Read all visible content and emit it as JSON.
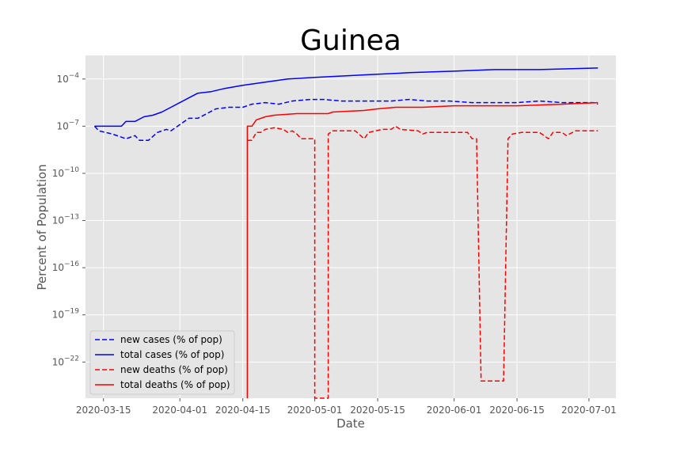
{
  "chart_data": {
    "type": "line",
    "title": "Guinea",
    "xlabel": "Date",
    "ylabel": "Percent of Population",
    "yscale": "log",
    "ylim_log10": [
      -24.3,
      -2.5
    ],
    "xlim": [
      "2020-03-11",
      "2020-07-07"
    ],
    "grid": true,
    "legend_position": "lower-left",
    "x_ticks": [
      "2020-03-15",
      "2020-04-01",
      "2020-04-15",
      "2020-05-01",
      "2020-05-15",
      "2020-06-01",
      "2020-06-15",
      "2020-07-01"
    ],
    "y_ticks": [
      {
        "exp": -4,
        "label": "10−4"
      },
      {
        "exp": -7,
        "label": "10−7"
      },
      {
        "exp": -10,
        "label": "10−10"
      },
      {
        "exp": -13,
        "label": "10−13"
      },
      {
        "exp": -16,
        "label": "10−16"
      },
      {
        "exp": -19,
        "label": "10−19"
      },
      {
        "exp": -22,
        "label": "10−22"
      }
    ],
    "series": [
      {
        "name": "new cases (% of pop)",
        "color": "#0000ff",
        "dash": "dashed",
        "log10_points": [
          [
            "2020-03-13",
            -7.0
          ],
          [
            "2020-03-14",
            -7.3
          ],
          [
            "2020-03-17",
            -7.5
          ],
          [
            "2020-03-20",
            -7.8
          ],
          [
            "2020-03-22",
            -7.6
          ],
          [
            "2020-03-23",
            -7.9
          ],
          [
            "2020-03-25",
            -7.9
          ],
          [
            "2020-03-27",
            -7.4
          ],
          [
            "2020-03-29",
            -7.2
          ],
          [
            "2020-03-30",
            -7.3
          ],
          [
            "2020-04-01",
            -6.9
          ],
          [
            "2020-04-03",
            -6.5
          ],
          [
            "2020-04-05",
            -6.5
          ],
          [
            "2020-04-07",
            -6.2
          ],
          [
            "2020-04-09",
            -5.9
          ],
          [
            "2020-04-12",
            -5.8
          ],
          [
            "2020-04-15",
            -5.8
          ],
          [
            "2020-04-17",
            -5.6
          ],
          [
            "2020-04-20",
            -5.5
          ],
          [
            "2020-04-23",
            -5.6
          ],
          [
            "2020-04-26",
            -5.4
          ],
          [
            "2020-04-30",
            -5.3
          ],
          [
            "2020-05-03",
            -5.3
          ],
          [
            "2020-05-07",
            -5.4
          ],
          [
            "2020-05-10",
            -5.4
          ],
          [
            "2020-05-14",
            -5.4
          ],
          [
            "2020-05-18",
            -5.4
          ],
          [
            "2020-05-22",
            -5.3
          ],
          [
            "2020-05-26",
            -5.4
          ],
          [
            "2020-05-31",
            -5.4
          ],
          [
            "2020-06-05",
            -5.5
          ],
          [
            "2020-06-10",
            -5.5
          ],
          [
            "2020-06-15",
            -5.5
          ],
          [
            "2020-06-20",
            -5.4
          ],
          [
            "2020-06-25",
            -5.5
          ],
          [
            "2020-07-02",
            -5.5
          ],
          [
            "2020-07-03",
            -5.6
          ]
        ]
      },
      {
        "name": "total cases (% of pop)",
        "color": "#0000ff",
        "dash": "solid",
        "log10_points": [
          [
            "2020-03-13",
            -7.0
          ],
          [
            "2020-03-17",
            -7.0
          ],
          [
            "2020-03-19",
            -7.0
          ],
          [
            "2020-03-20",
            -6.7
          ],
          [
            "2020-03-22",
            -6.7
          ],
          [
            "2020-03-24",
            -6.4
          ],
          [
            "2020-03-26",
            -6.3
          ],
          [
            "2020-03-28",
            -6.1
          ],
          [
            "2020-03-30",
            -5.8
          ],
          [
            "2020-04-01",
            -5.5
          ],
          [
            "2020-04-03",
            -5.2
          ],
          [
            "2020-04-05",
            -4.9
          ],
          [
            "2020-04-08",
            -4.8
          ],
          [
            "2020-04-11",
            -4.6
          ],
          [
            "2020-04-15",
            -4.4
          ],
          [
            "2020-04-20",
            -4.2
          ],
          [
            "2020-04-25",
            -4.0
          ],
          [
            "2020-05-01",
            -3.9
          ],
          [
            "2020-05-08",
            -3.8
          ],
          [
            "2020-05-15",
            -3.7
          ],
          [
            "2020-05-22",
            -3.6
          ],
          [
            "2020-06-01",
            -3.5
          ],
          [
            "2020-06-10",
            -3.4
          ],
          [
            "2020-06-20",
            -3.4
          ],
          [
            "2020-07-03",
            -3.3
          ]
        ]
      },
      {
        "name": "new deaths (% of pop)",
        "color": "#ff0000",
        "dash": "dashed",
        "log10_points": [
          [
            "2020-04-16",
            -7.9
          ],
          [
            "2020-04-17",
            -7.9
          ],
          [
            "2020-04-18",
            -7.4
          ],
          [
            "2020-04-19",
            -7.4
          ],
          [
            "2020-04-20",
            -7.2
          ],
          [
            "2020-04-22",
            -7.1
          ],
          [
            "2020-04-24",
            -7.2
          ],
          [
            "2020-04-25",
            -7.4
          ],
          [
            "2020-04-26",
            -7.3
          ],
          [
            "2020-04-27",
            -7.5
          ],
          [
            "2020-04-28",
            -7.8
          ],
          [
            "2020-05-01",
            -7.8
          ],
          [
            "2020-05-01",
            -24.3
          ],
          [
            "2020-05-04",
            -24.3
          ],
          [
            "2020-05-04",
            -7.5
          ],
          [
            "2020-05-05",
            -7.3
          ],
          [
            "2020-05-10",
            -7.3
          ],
          [
            "2020-05-12",
            -7.8
          ],
          [
            "2020-05-13",
            -7.4
          ],
          [
            "2020-05-16",
            -7.2
          ],
          [
            "2020-05-18",
            -7.2
          ],
          [
            "2020-05-19",
            -7.0
          ],
          [
            "2020-05-20",
            -7.2
          ],
          [
            "2020-05-24",
            -7.3
          ],
          [
            "2020-05-25",
            -7.5
          ],
          [
            "2020-05-26",
            -7.4
          ],
          [
            "2020-06-04",
            -7.4
          ],
          [
            "2020-06-05",
            -7.8
          ],
          [
            "2020-06-06",
            -7.8
          ],
          [
            "2020-06-07",
            -23.2
          ],
          [
            "2020-06-12",
            -23.2
          ],
          [
            "2020-06-13",
            -7.8
          ],
          [
            "2020-06-14",
            -7.5
          ],
          [
            "2020-06-16",
            -7.4
          ],
          [
            "2020-06-20",
            -7.4
          ],
          [
            "2020-06-21",
            -7.6
          ],
          [
            "2020-06-22",
            -7.8
          ],
          [
            "2020-06-23",
            -7.4
          ],
          [
            "2020-06-25",
            -7.4
          ],
          [
            "2020-06-26",
            -7.6
          ],
          [
            "2020-06-28",
            -7.3
          ],
          [
            "2020-07-03",
            -7.3
          ]
        ]
      },
      {
        "name": "total deaths (% of pop)",
        "color": "#ff0000",
        "dash": "solid",
        "log10_points": [
          [
            "2020-04-16",
            -24.3
          ],
          [
            "2020-04-16",
            -7.0
          ],
          [
            "2020-04-17",
            -7.0
          ],
          [
            "2020-04-18",
            -6.6
          ],
          [
            "2020-04-20",
            -6.4
          ],
          [
            "2020-04-22",
            -6.3
          ],
          [
            "2020-04-27",
            -6.2
          ],
          [
            "2020-05-04",
            -6.2
          ],
          [
            "2020-05-05",
            -6.1
          ],
          [
            "2020-05-12",
            -6.0
          ],
          [
            "2020-05-15",
            -5.9
          ],
          [
            "2020-05-19",
            -5.8
          ],
          [
            "2020-05-25",
            -5.8
          ],
          [
            "2020-06-01",
            -5.7
          ],
          [
            "2020-06-15",
            -5.7
          ],
          [
            "2020-06-25",
            -5.6
          ],
          [
            "2020-07-03",
            -5.5
          ]
        ]
      }
    ]
  }
}
